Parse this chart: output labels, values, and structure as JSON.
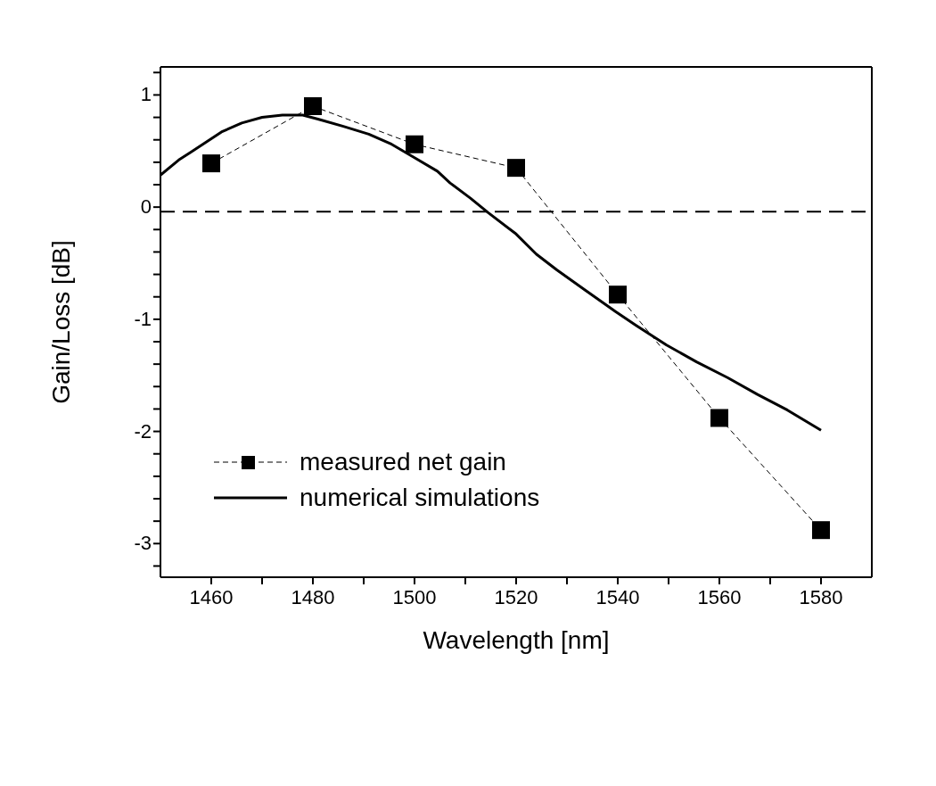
{
  "chart_data": {
    "type": "line",
    "xlabel": "Wavelength [nm]",
    "ylabel": "Gain/Loss [dB]",
    "xlim": [
      1450,
      1590
    ],
    "ylim": [
      -3.3,
      1.25
    ],
    "xticks": [
      1460,
      {
        "value": 1470,
        "label": null
      },
      1480,
      {
        "value": 1490,
        "label": null
      },
      1500,
      {
        "value": 1510,
        "label": null
      },
      1520,
      {
        "value": 1530,
        "label": null
      },
      1540,
      {
        "value": 1550,
        "label": null
      },
      1560,
      {
        "value": 1570,
        "label": null
      },
      1580
    ],
    "yticks": [
      {
        "value": -3.2,
        "label": null
      },
      -3,
      {
        "value": -2.8,
        "label": null
      },
      {
        "value": -2.6,
        "label": null
      },
      {
        "value": -2.4,
        "label": null
      },
      {
        "value": -2.2,
        "label": null
      },
      -2,
      {
        "value": -1.8,
        "label": null
      },
      {
        "value": -1.6,
        "label": null
      },
      {
        "value": -1.4,
        "label": null
      },
      {
        "value": -1.2,
        "label": null
      },
      -1,
      {
        "value": -0.8,
        "label": null
      },
      {
        "value": -0.6,
        "label": null
      },
      {
        "value": -0.4,
        "label": null
      },
      {
        "value": -0.2,
        "label": null
      },
      0,
      {
        "value": 0.2,
        "label": null
      },
      {
        "value": 0.4,
        "label": null
      },
      {
        "value": 0.6,
        "label": null
      },
      {
        "value": 0.8,
        "label": null
      },
      1,
      {
        "value": 1.2,
        "label": null
      }
    ],
    "legend": "bottom left",
    "ref_lines": [
      {
        "axis": "y",
        "value": -0.04,
        "line_style": "dashed",
        "color": "#000000"
      }
    ],
    "series": [
      {
        "name": "measured net gain",
        "color": "#000000",
        "marker": "square",
        "line_style": "dashed",
        "x": [
          1460,
          1480,
          1500,
          1520,
          1540,
          1560,
          1580
        ],
        "values": [
          0.39,
          0.9,
          0.56,
          0.35,
          -0.78,
          -1.88,
          -2.88
        ]
      },
      {
        "name": "numerical simulations",
        "color": "#000000",
        "marker": "none",
        "line_style": "solid",
        "x": [
          1450,
          1453.6,
          1456,
          1460,
          1462,
          1466,
          1470,
          1474,
          1478,
          1481,
          1486,
          1491,
          1495.5,
          1500,
          1504.5,
          1507,
          1511,
          1514.5,
          1520,
          1524,
          1528,
          1533.6,
          1539.5,
          1543.6,
          1549.6,
          1555.5,
          1561.6,
          1567.5,
          1573.4,
          1580
        ],
        "values": [
          0.285,
          0.42,
          0.49,
          0.61,
          0.67,
          0.75,
          0.8,
          0.82,
          0.82,
          0.785,
          0.72,
          0.65,
          0.56,
          0.44,
          0.32,
          0.215,
          0.08,
          -0.05,
          -0.24,
          -0.42,
          -0.56,
          -0.74,
          -0.93,
          -1.055,
          -1.23,
          -1.38,
          -1.52,
          -1.67,
          -1.81,
          -1.99
        ]
      }
    ]
  }
}
